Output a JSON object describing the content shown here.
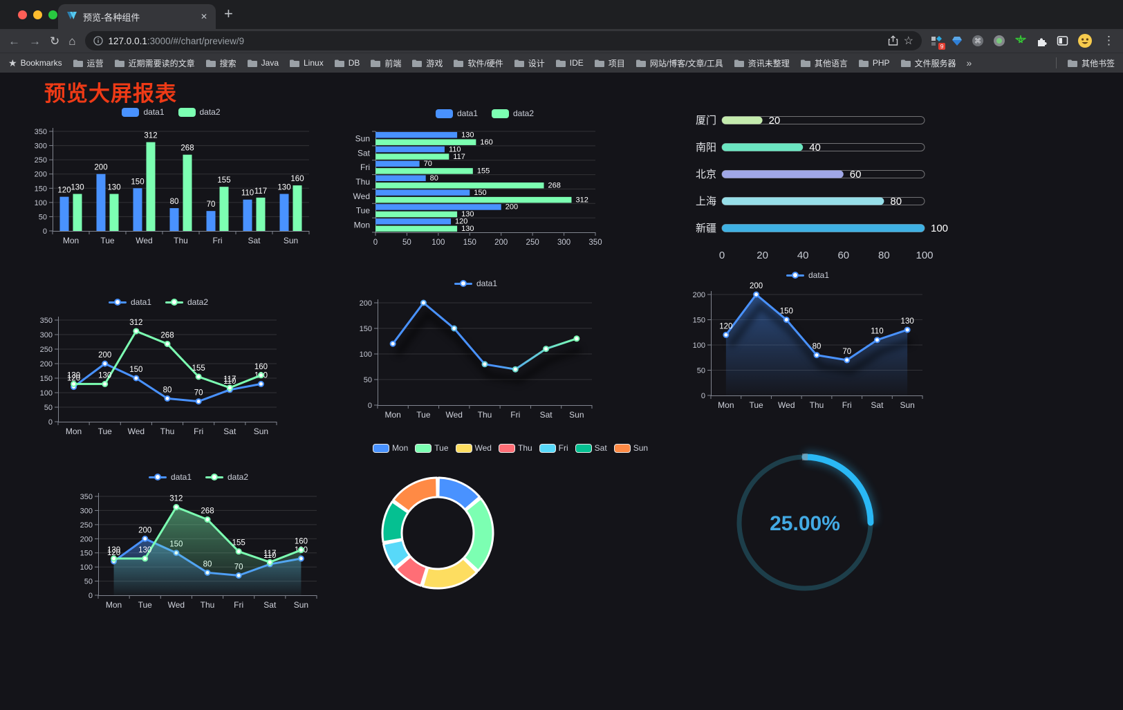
{
  "browser": {
    "tab_title": "预览-各种组件",
    "close_glyph": "✕",
    "new_tab_glyph": "+",
    "nav": {
      "back": "←",
      "forward": "→",
      "reload": "↻",
      "home": "⌂"
    },
    "omnibox": {
      "host": "127.0.0.1",
      "path": ":3000/#/chart/preview/9",
      "star_glyph": "☆"
    },
    "extensions_badge": "9",
    "menu_glyph": "⋮",
    "bookmarks_label": "Bookmarks",
    "bookmark_folders": [
      "运营",
      "近期需要读的文章",
      "搜索",
      "Java",
      "Linux",
      "DB",
      "前端",
      "游戏",
      "软件/硬件",
      "设计",
      "IDE",
      "项目",
      "网站/博客/文章/工具",
      "资讯未整理",
      "其他语言",
      "PHP",
      "文件服务器"
    ],
    "overflow_glyph": "»",
    "other_bookmarks": "其他书签"
  },
  "page": {
    "title": "预览大屏报表",
    "title_color": "#ee3a16"
  },
  "chart_data": [
    {
      "id": "grouped-bar",
      "type": "bar",
      "legend": [
        "data1",
        "data2"
      ],
      "categories": [
        "Mon",
        "Tue",
        "Wed",
        "Thu",
        "Fri",
        "Sat",
        "Sun"
      ],
      "series": [
        {
          "name": "data1",
          "color": "#4992ff",
          "values": [
            120,
            200,
            150,
            80,
            70,
            110,
            130
          ]
        },
        {
          "name": "data2",
          "color": "#7cffb2",
          "values": [
            130,
            130,
            312,
            268,
            155,
            117,
            160
          ]
        }
      ],
      "ylim": [
        0,
        350
      ],
      "ystep": 50,
      "yticks": [
        0,
        50,
        100,
        150,
        200,
        250,
        300,
        350
      ],
      "value_labels": true
    },
    {
      "id": "grouped-hbar",
      "type": "hbar",
      "legend": [
        "data1",
        "data2"
      ],
      "categories": [
        "Sun",
        "Sat",
        "Fri",
        "Thu",
        "Wed",
        "Tue",
        "Mon"
      ],
      "series": [
        {
          "name": "data1",
          "color": "#4992ff",
          "values": [
            130,
            110,
            70,
            80,
            150,
            200,
            120
          ]
        },
        {
          "name": "data2",
          "color": "#7cffb2",
          "values": [
            160,
            117,
            155,
            268,
            312,
            130,
            130
          ]
        }
      ],
      "xlim": [
        0,
        350
      ],
      "xstep": 50,
      "xticks": [
        0,
        50,
        100,
        150,
        200,
        250,
        300,
        350
      ],
      "value_labels": true
    },
    {
      "id": "progress-bars",
      "type": "progress",
      "xlim": [
        0,
        100
      ],
      "xticks": [
        0,
        20,
        40,
        60,
        80,
        100
      ],
      "items": [
        {
          "label": "厦门",
          "value": 20,
          "color": "#c4ebad"
        },
        {
          "label": "南阳",
          "value": 40,
          "color": "#6be6c1"
        },
        {
          "label": "北京",
          "value": 60,
          "color": "#a0a7e6"
        },
        {
          "label": "上海",
          "value": 80,
          "color": "#96dee8"
        },
        {
          "label": "新疆",
          "value": 100,
          "color": "#3fb1e3"
        }
      ]
    },
    {
      "id": "two-line",
      "type": "line",
      "legend": [
        "data1",
        "data2"
      ],
      "categories": [
        "Mon",
        "Tue",
        "Wed",
        "Thu",
        "Fri",
        "Sat",
        "Sun"
      ],
      "series": [
        {
          "name": "data1",
          "color": "#4992ff",
          "values": [
            120,
            200,
            150,
            80,
            70,
            110,
            130
          ]
        },
        {
          "name": "data2",
          "color": "#7cffb2",
          "values": [
            130,
            130,
            312,
            268,
            155,
            117,
            160
          ]
        }
      ],
      "ylim": [
        0,
        350
      ],
      "ystep": 50,
      "yticks": [
        0,
        50,
        100,
        150,
        200,
        250,
        300,
        350
      ],
      "value_labels": true
    },
    {
      "id": "gradient-line",
      "type": "line",
      "legend": [
        "data1"
      ],
      "categories": [
        "Mon",
        "Tue",
        "Wed",
        "Thu",
        "Fri",
        "Sat",
        "Sun"
      ],
      "series": [
        {
          "name": "data1",
          "gradient": [
            "#4992ff",
            "#7cffb2"
          ],
          "values": [
            120,
            200,
            150,
            80,
            70,
            110,
            130
          ]
        }
      ],
      "ylim": [
        0,
        200
      ],
      "ystep": 50,
      "yticks": [
        0,
        50,
        100,
        150,
        200
      ],
      "value_labels": false,
      "shadow": true
    },
    {
      "id": "area-line",
      "type": "line",
      "legend": [
        "data1"
      ],
      "categories": [
        "Mon",
        "Tue",
        "Wed",
        "Thu",
        "Fri",
        "Sat",
        "Sun"
      ],
      "series": [
        {
          "name": "data1",
          "color": "#4992ff",
          "area": true,
          "values": [
            120,
            200,
            150,
            80,
            70,
            110,
            130
          ]
        }
      ],
      "ylim": [
        0,
        200
      ],
      "ystep": 50,
      "yticks": [
        0,
        50,
        100,
        150,
        200
      ],
      "value_labels": true,
      "shadow": true
    },
    {
      "id": "two-line-area",
      "type": "line",
      "legend": [
        "data1",
        "data2"
      ],
      "categories": [
        "Mon",
        "Tue",
        "Wed",
        "Thu",
        "Fri",
        "Sat",
        "Sun"
      ],
      "series": [
        {
          "name": "data1",
          "color": "#4992ff",
          "area": true,
          "values": [
            120,
            200,
            150,
            80,
            70,
            110,
            130
          ]
        },
        {
          "name": "data2",
          "color": "#7cffb2",
          "area": true,
          "values": [
            130,
            130,
            312,
            268,
            155,
            117,
            160
          ]
        }
      ],
      "ylim": [
        0,
        350
      ],
      "ystep": 50,
      "yticks": [
        0,
        50,
        100,
        150,
        200,
        250,
        300,
        350
      ],
      "value_labels": true
    },
    {
      "id": "donut",
      "type": "pie",
      "legend": [
        "Mon",
        "Tue",
        "Wed",
        "Thu",
        "Fri",
        "Sat",
        "Sun"
      ],
      "values": [
        120,
        200,
        150,
        80,
        70,
        110,
        130
      ],
      "colors": [
        "#4992ff",
        "#7cffb2",
        "#fddd60",
        "#ff6e76",
        "#58d9f9",
        "#05c091",
        "#ff8a45"
      ]
    },
    {
      "id": "gauge",
      "type": "gauge",
      "value": 25,
      "label": "25.00%",
      "color": "#2ab8f5",
      "track": "#1d3e4a"
    }
  ]
}
